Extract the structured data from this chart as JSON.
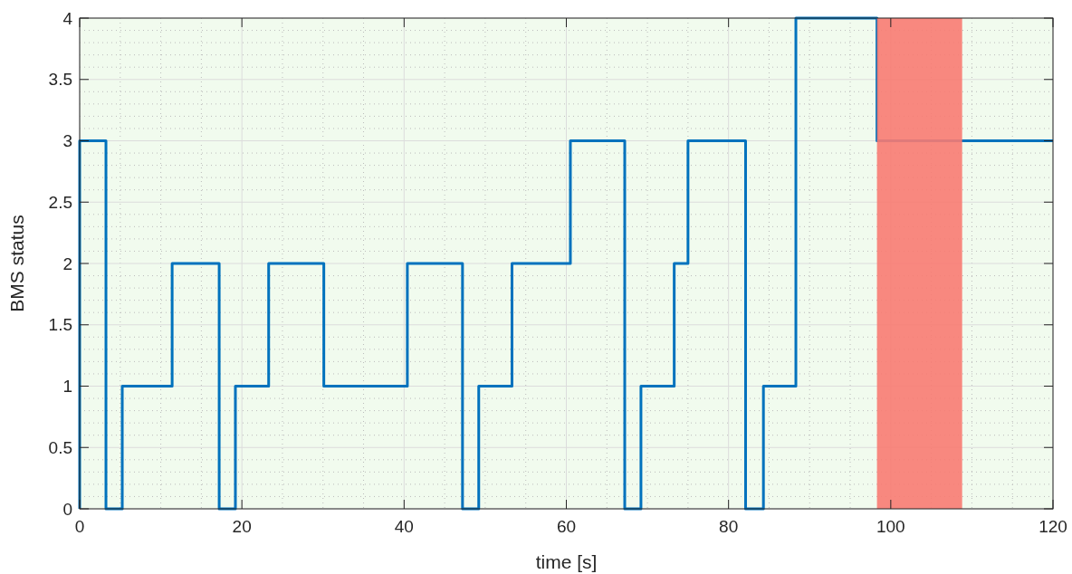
{
  "chart_data": {
    "type": "step",
    "xlabel": "time [s]",
    "ylabel": "BMS status",
    "x": [
      0,
      0,
      3.24,
      5.25,
      11.4,
      17.2,
      19.2,
      23.3,
      30.1,
      40.4,
      47.2,
      49.2,
      53.3,
      60.5,
      67.2,
      69.2,
      73.3,
      75.0,
      82.1,
      84.3,
      88.3,
      98.3,
      120
    ],
    "series": [
      {
        "color": "#0072bd",
        "values": [
          0,
          3,
          0,
          1,
          2,
          0,
          1,
          2,
          1,
          2,
          0,
          1,
          2,
          3,
          0,
          1,
          2,
          3,
          0,
          1,
          4,
          3,
          3
        ]
      }
    ],
    "xlim": [
      0,
      120
    ],
    "xticks": [
      0,
      20,
      40,
      60,
      80,
      100,
      120
    ],
    "ylim": [
      0,
      4
    ],
    "yticks": [
      0,
      0.5,
      1,
      1.5,
      2,
      2.5,
      3,
      3.5,
      4
    ],
    "grid": true,
    "bands": [
      {
        "axis": "x",
        "from": 98.3,
        "to": 108.8,
        "color": "#f87b72"
      }
    ]
  }
}
